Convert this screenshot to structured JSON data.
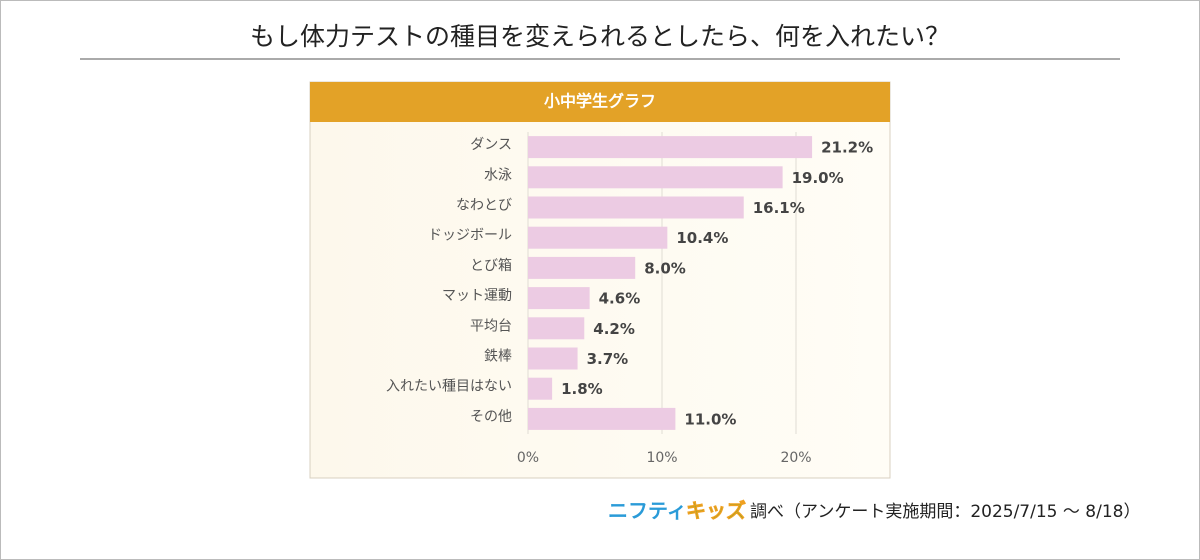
{
  "chart_data": {
    "type": "bar",
    "orientation": "horizontal",
    "title": "もし体力テストの種目を変えられるとしたら、何を入れたい？",
    "subtitle": "小中学生グラフ",
    "categories": [
      "ダンス",
      "水泳",
      "なわとび",
      "ドッジボール",
      "とび箱",
      "マット運動",
      "平均台",
      "鉄棒",
      "入れたい種目はない",
      "その他"
    ],
    "values": [
      21.2,
      19.0,
      16.1,
      10.4,
      8.0,
      4.6,
      4.2,
      3.7,
      1.8,
      11.0
    ],
    "value_labels": [
      "21.2%",
      "19.0%",
      "16.1%",
      "10.4%",
      "8.0%",
      "4.6%",
      "4.2%",
      "3.7%",
      "1.8%",
      "11.0%"
    ],
    "color": "#eccbe3",
    "xlim": [
      0,
      27
    ],
    "xticks": [
      {
        "value": 0,
        "label": "0%"
      },
      {
        "value": 10,
        "label": "10%"
      },
      {
        "value": 20,
        "label": "20%"
      }
    ],
    "grid": true,
    "source_logo": [
      "ニフティ",
      "キッズ"
    ],
    "source": "調べ（アンケート実施期間：2025/7/15 ～ 8/18）"
  }
}
